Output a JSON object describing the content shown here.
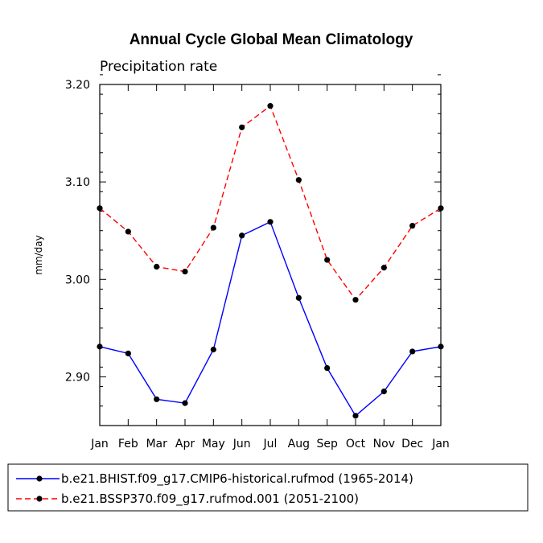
{
  "chart_data": {
    "type": "line",
    "title": "Annual Cycle Global Mean Climatology",
    "subtitle": "Precipitation rate",
    "ylabel": "mm/day",
    "xlabel": "",
    "categories": [
      "Jan",
      "Feb",
      "Mar",
      "Apr",
      "May",
      "Jun",
      "Jul",
      "Aug",
      "Sep",
      "Oct",
      "Nov",
      "Dec",
      "Jan"
    ],
    "ylim": [
      2.85,
      3.2
    ],
    "yticks": [
      2.9,
      3.0,
      3.1,
      3.2
    ],
    "ytick_labels": [
      "2.90",
      "3.00",
      "3.10",
      "3.20"
    ],
    "series": [
      {
        "name": "b.e21.BHIST.f09_g17.CMIP6-historical.rufmod (1965-2014)",
        "color": "#0000ff",
        "line_style": "solid",
        "values": [
          2.931,
          2.924,
          2.877,
          2.873,
          2.928,
          3.045,
          3.059,
          2.981,
          2.909,
          2.86,
          2.885,
          2.926,
          2.931
        ]
      },
      {
        "name": "b.e21.BSSP370.f09_g17.rufmod.001 (2051-2100)",
        "color": "#ff0000",
        "line_style": "dashed",
        "values": [
          3.073,
          3.049,
          3.013,
          3.008,
          3.053,
          3.156,
          3.178,
          3.102,
          3.02,
          2.979,
          3.012,
          3.055,
          3.073
        ]
      }
    ],
    "legend_position": "bottom"
  }
}
